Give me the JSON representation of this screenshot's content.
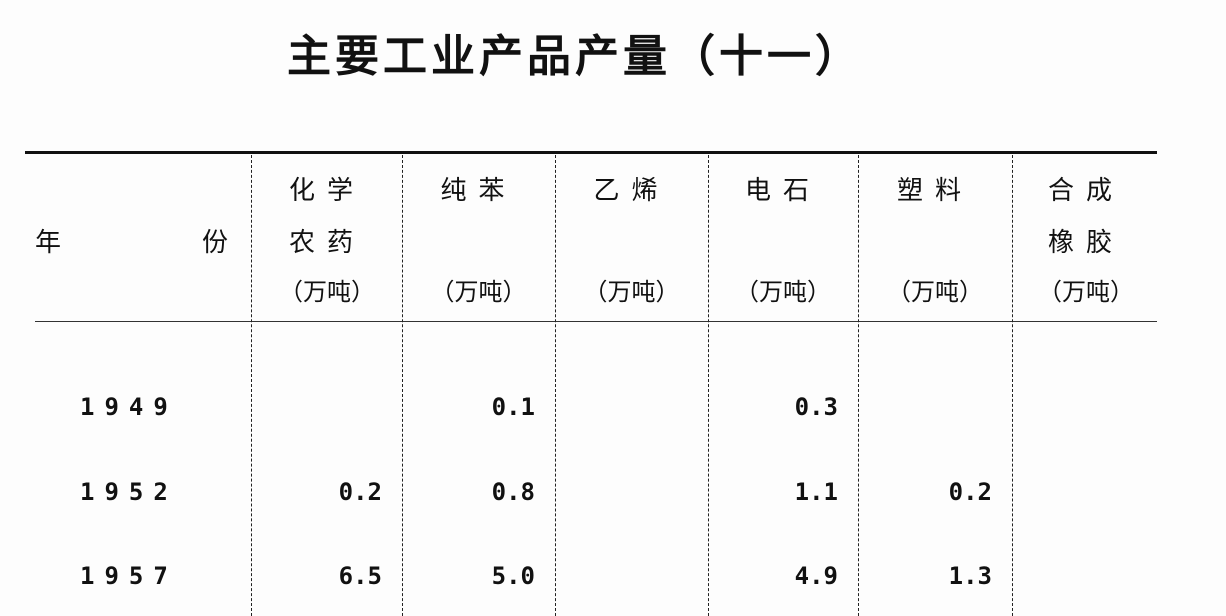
{
  "title": "主要工业产品产量（十一）",
  "header": {
    "year_left": "年",
    "year_right": "份",
    "columns": [
      {
        "line1": "化学",
        "line2": "农药",
        "unit": "（万吨）"
      },
      {
        "line1": "纯苯",
        "line2": "",
        "unit": "（万吨）"
      },
      {
        "line1": "乙烯",
        "line2": "",
        "unit": "（万吨）"
      },
      {
        "line1": "电石",
        "line2": "",
        "unit": "（万吨）"
      },
      {
        "line1": "塑料",
        "line2": "",
        "unit": "（万吨）"
      },
      {
        "line1": "合成",
        "line2": "橡胶",
        "unit": "（万吨）"
      }
    ]
  },
  "rows": [
    {
      "year": "1949",
      "values": [
        "",
        "0.1",
        "",
        "0.3",
        "",
        ""
      ]
    },
    {
      "year": "1952",
      "values": [
        "0.2",
        "0.8",
        "",
        "1.1",
        "0.2",
        ""
      ]
    },
    {
      "year": "1957",
      "values": [
        "6.5",
        "5.0",
        "",
        "4.9",
        "1.3",
        ""
      ]
    }
  ]
}
